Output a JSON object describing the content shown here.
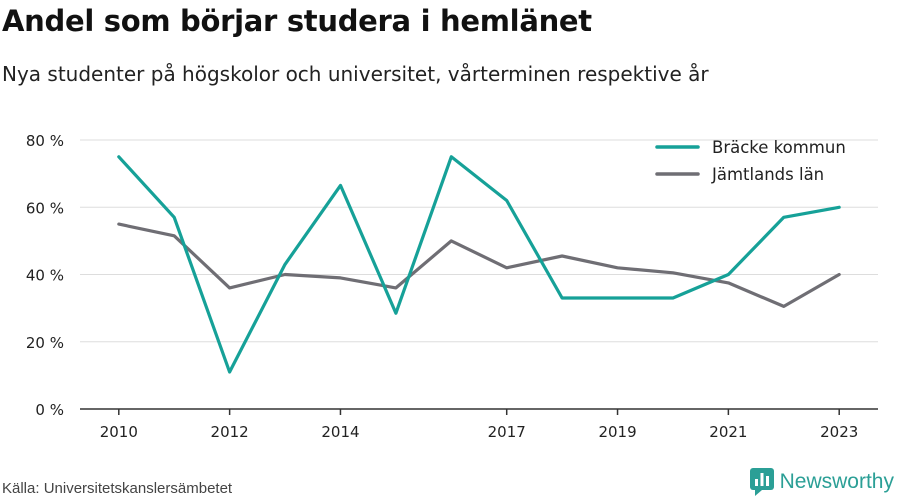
{
  "title": "Andel som börjar studera i hemlänet",
  "subtitle": "Nya studenter på högskolor och universitet, vårterminen respektive år",
  "source": "Källa: Universitetskanslersämbetet",
  "brand": "Newsworthy",
  "colors": {
    "accent": "#16a198",
    "grey": "#6f6e74",
    "grid": "#dddddd",
    "axis": "#333333"
  },
  "chart_data": {
    "type": "line",
    "x": [
      2010,
      2011,
      2012,
      2013,
      2014,
      2015,
      2016,
      2017,
      2018,
      2019,
      2020,
      2021,
      2022,
      2023
    ],
    "x_tick_labels": [
      "2010",
      "2012",
      "2014",
      "2017",
      "2019",
      "2021",
      "2023"
    ],
    "y_tick_labels": [
      "0 %",
      "20 %",
      "40 %",
      "60 %",
      "80 %"
    ],
    "ylim": [
      0,
      80
    ],
    "legend_position": "top-right",
    "grid": true,
    "series": [
      {
        "name": "Bräcke kommun",
        "color": "#16a198",
        "values": [
          75,
          57,
          11,
          43,
          66.5,
          28.5,
          75,
          62,
          33,
          33,
          33,
          40,
          57,
          60
        ]
      },
      {
        "name": "Jämtlands län",
        "color": "#6f6e74",
        "values": [
          55,
          51.5,
          36,
          40,
          39,
          36,
          50,
          42,
          45.5,
          42,
          40.5,
          37.5,
          30.5,
          40
        ]
      }
    ]
  }
}
